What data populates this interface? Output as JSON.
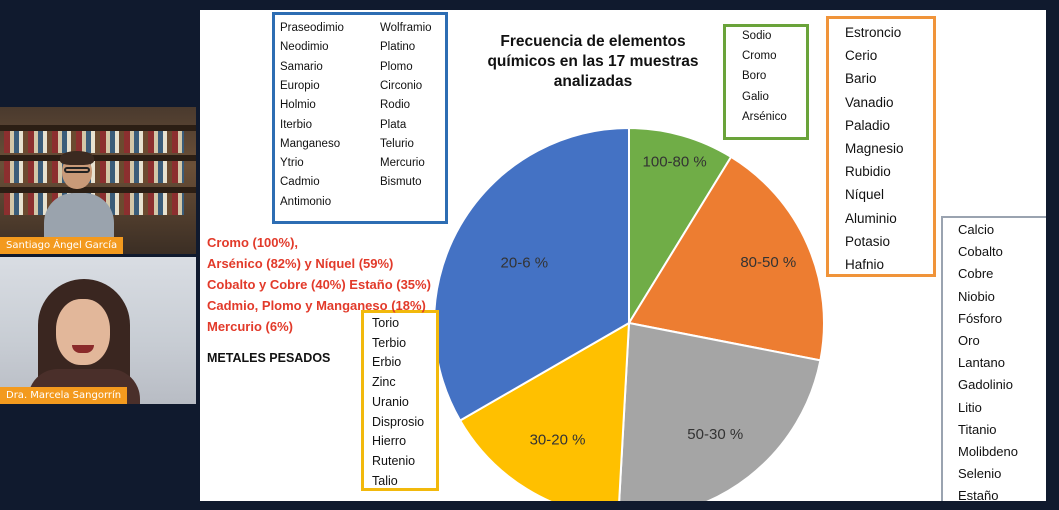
{
  "participants": [
    {
      "name": "Santiago Ángel García"
    },
    {
      "name": "Dra. Marcela Sangorrín"
    }
  ],
  "slide": {
    "title_lines": [
      "Frecuencia de elementos",
      "químicos en las 17 muestras",
      "analizadas"
    ],
    "red_notes": [
      "Cromo (100%),",
      "Arsénico (82%) y Níquel (59%)",
      "Cobalto y Cobre (40%)  Estaño (35%)",
      "Cadmio, Plomo y Manganeso (18%)",
      "Mercurio (6%)"
    ],
    "metales_label": "METALES PESADOS",
    "blue_list_col1": [
      "Praseodimio",
      "Neodimio",
      "Samario",
      "Europio",
      "Holmio",
      "Iterbio",
      "Manganeso",
      "Ytrio",
      "Cadmio",
      "Antimonio"
    ],
    "blue_list_col2": [
      "Wolframio",
      "Platino",
      "Plomo",
      "Circonio",
      "Rodio",
      "Plata",
      "Telurio",
      "Mercurio",
      "Bismuto"
    ],
    "green_list": [
      "Sodio",
      "Cromo",
      "Boro",
      "Galio",
      "Arsénico"
    ],
    "orange_list": [
      "Estroncio",
      "Cerio",
      "Bario",
      "Vanadio",
      "Paladio",
      "Magnesio",
      "Rubidio",
      "Níquel",
      "Aluminio",
      "Potasio",
      "Hafnio"
    ],
    "yellow_list": [
      "Torio",
      "Terbio",
      "Erbio",
      "Zinc",
      "Uranio",
      "Disprosio",
      "Hierro",
      "Rutenio",
      "Talio"
    ],
    "gray_list": [
      "Calcio",
      "Cobalto",
      "Cobre",
      "Niobio",
      "Fósforo",
      "Oro",
      "Lantano",
      "Gadolinio",
      "Litio",
      "Titanio",
      "Molibdeno",
      "Selenio",
      "Estaño"
    ]
  },
  "chart_data": {
    "type": "pie",
    "slices": [
      {
        "label": "100-80 %",
        "value": 5,
        "color": "#70ad47"
      },
      {
        "label": "80-50 %",
        "value": 11,
        "color": "#ed7d31"
      },
      {
        "label": "50-30 %",
        "value": 13,
        "color": "#a5a5a5"
      },
      {
        "label": "30-20 %",
        "value": 9,
        "color": "#ffc000"
      },
      {
        "label": "20-6 %",
        "value": 19,
        "color": "#4472c4"
      }
    ]
  }
}
